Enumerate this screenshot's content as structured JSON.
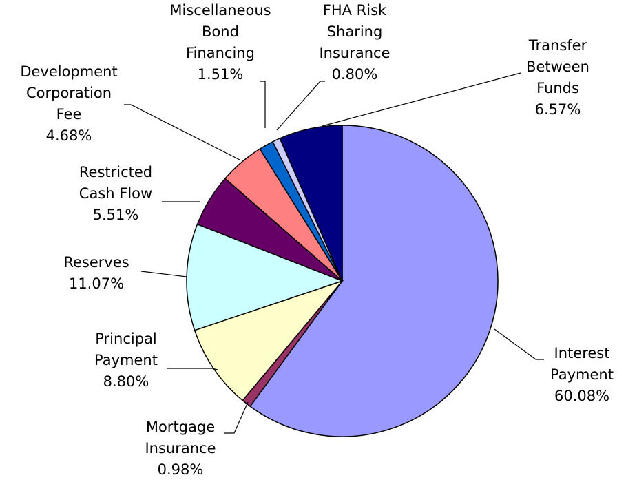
{
  "chart_data": {
    "type": "pie",
    "categories": [
      [
        "Interest",
        "Payment"
      ],
      [
        "Mortgage",
        "Insurance"
      ],
      [
        "Principal",
        "Payment"
      ],
      [
        "Reserves"
      ],
      [
        "Restricted",
        "Cash Flow"
      ],
      [
        "Development",
        "Corporation",
        "Fee"
      ],
      [
        "Miscellaneous",
        "Bond",
        "Financing"
      ],
      [
        "FHA Risk",
        "Sharing",
        "Insurance"
      ],
      [
        "Transfer",
        "Between",
        "Funds"
      ]
    ],
    "values": [
      60.08,
      0.98,
      8.8,
      11.07,
      5.51,
      4.68,
      1.51,
      0.8,
      6.57
    ],
    "value_labels": [
      "60.08%",
      "0.98%",
      "8.80%",
      "11.07%",
      "5.51%",
      "4.68%",
      "1.51%",
      "0.80%",
      "6.57%"
    ],
    "colors": [
      "#9999ff",
      "#993366",
      "#ffffcc",
      "#ccffff",
      "#660066",
      "#ff8080",
      "#0066cc",
      "#ccccff",
      "#000080"
    ]
  }
}
